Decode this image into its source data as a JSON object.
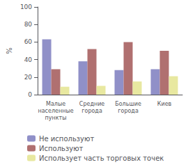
{
  "chart_data": {
    "type": "bar",
    "categories": [
      "Малые\nнаселенные\nпункты",
      "Средние\nгорода",
      "Большие\nгорода",
      "Киев"
    ],
    "series": [
      {
        "name": "Не используют",
        "color": "#9090c8",
        "values": [
          63,
          38,
          28,
          29
        ]
      },
      {
        "name": "Используют",
        "color": "#b07070",
        "values": [
          29,
          52,
          60,
          50
        ]
      },
      {
        "name": "Использует часть торговых точек",
        "color": "#e8e8a0",
        "values": [
          9,
          10,
          15,
          21
        ]
      }
    ],
    "ylabel": "%",
    "ylim": [
      0,
      100
    ],
    "yticks": [
      0,
      20,
      40,
      60,
      80,
      100
    ],
    "grid": false,
    "legend": "lower left"
  }
}
